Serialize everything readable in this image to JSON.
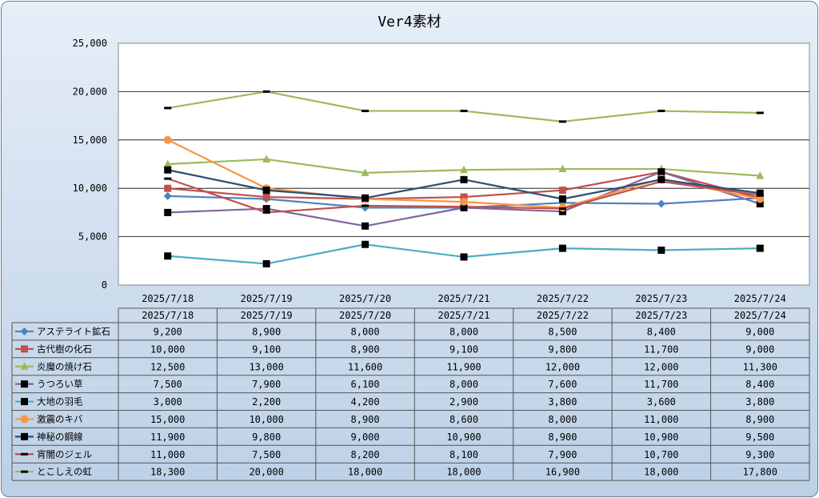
{
  "chart_data": {
    "type": "line",
    "title": "Ver4素材",
    "x": [
      "2025/7/18",
      "2025/7/19",
      "2025/7/20",
      "2025/7/21",
      "2025/7/22",
      "2025/7/23",
      "2025/7/24"
    ],
    "ylim": [
      0,
      25000
    ],
    "yticks": [
      "0",
      "5,000",
      "10,000",
      "15,000",
      "20,000",
      "25,000"
    ],
    "ytick_values": [
      0,
      5000,
      10000,
      15000,
      20000,
      25000
    ],
    "grid": true,
    "data_table": true,
    "series": [
      {
        "name": "アステライト鉱石",
        "color": "#4f81bd",
        "marker": "diamond",
        "values": [
          9200,
          8900,
          8000,
          8000,
          8500,
          8400,
          9000
        ],
        "labels": [
          "9,200",
          "8,900",
          "8,000",
          "8,000",
          "8,500",
          "8,400",
          "9,000"
        ]
      },
      {
        "name": "古代樹の化石",
        "color": "#c0504d",
        "marker": "square",
        "values": [
          10000,
          9100,
          8900,
          9100,
          9800,
          11700,
          9000
        ],
        "labels": [
          "10,000",
          "9,100",
          "8,900",
          "9,100",
          "9,800",
          "11,700",
          "9,000"
        ]
      },
      {
        "name": "炎魔の焼け石",
        "color": "#9bbb59",
        "marker": "triangle",
        "values": [
          12500,
          13000,
          11600,
          11900,
          12000,
          12000,
          11300
        ],
        "labels": [
          "12,500",
          "13,000",
          "11,600",
          "11,900",
          "12,000",
          "12,000",
          "11,300"
        ]
      },
      {
        "name": "うつろい草",
        "color": "#8064a2",
        "marker": "blacksquare",
        "values": [
          7500,
          7900,
          6100,
          8000,
          7600,
          11700,
          8400
        ],
        "labels": [
          "7,500",
          "7,900",
          "6,100",
          "8,000",
          "7,600",
          "11,700",
          "8,400"
        ]
      },
      {
        "name": "大地の羽毛",
        "color": "#4bacc6",
        "marker": "blacksquare",
        "values": [
          3000,
          2200,
          4200,
          2900,
          3800,
          3600,
          3800
        ],
        "labels": [
          "3,000",
          "2,200",
          "4,200",
          "2,900",
          "3,800",
          "3,600",
          "3,800"
        ]
      },
      {
        "name": "激震のキバ",
        "color": "#f79646",
        "marker": "circle",
        "values": [
          15000,
          10000,
          8900,
          8600,
          8000,
          11000,
          8900
        ],
        "labels": [
          "15,000",
          "10,000",
          "8,900",
          "8,600",
          "8,000",
          "11,000",
          "8,900"
        ]
      },
      {
        "name": "神秘の鋼線",
        "color": "#2c4d75",
        "marker": "blacksquare",
        "values": [
          11900,
          9800,
          9000,
          10900,
          8900,
          10900,
          9500
        ],
        "labels": [
          "11,900",
          "9,800",
          "9,000",
          "10,900",
          "8,900",
          "10,900",
          "9,500"
        ]
      },
      {
        "name": "宵闇のジェル",
        "color": "#c0504d",
        "marker": "dash",
        "values": [
          11000,
          7500,
          8200,
          8100,
          7900,
          10700,
          9300
        ],
        "labels": [
          "11,000",
          "7,500",
          "8,200",
          "8,100",
          "7,900",
          "10,700",
          "9,300"
        ]
      },
      {
        "name": "とこしえの虹",
        "color": "#9bbb59",
        "marker": "dash",
        "values": [
          18300,
          20000,
          18000,
          18000,
          16900,
          18000,
          17800
        ],
        "labels": [
          "18,300",
          "20,000",
          "18,000",
          "18,000",
          "16,900",
          "18,000",
          "17,800"
        ]
      }
    ]
  }
}
